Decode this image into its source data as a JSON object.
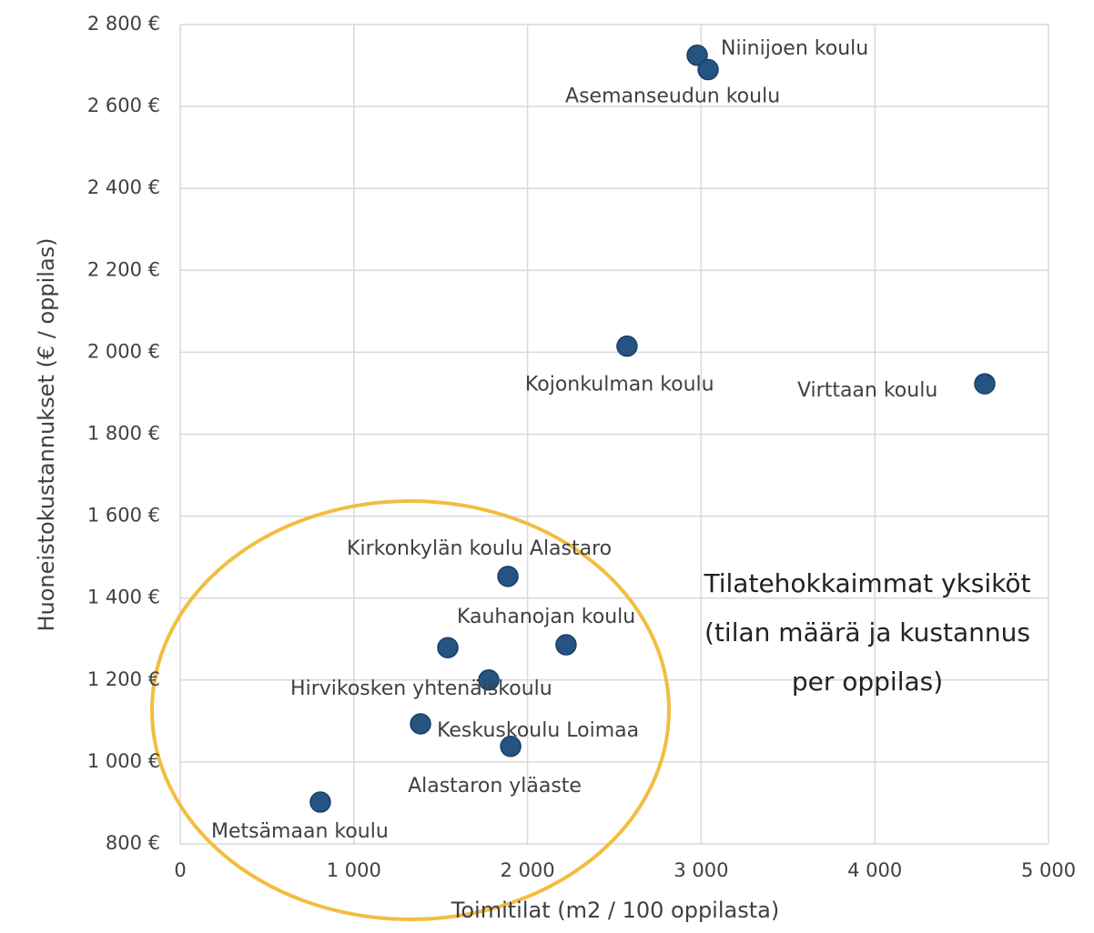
{
  "chart_data": {
    "type": "scatter",
    "x_label": "Toimitilat (m2 / 100 oppilasta)",
    "y_label": "Huoneistokustannukset (€ / oppilas)",
    "color": "#255382",
    "grid": true,
    "xlim": [
      0,
      5000
    ],
    "ylim": [
      800,
      2800
    ],
    "xticks": [
      0,
      {
        "value": 1000,
        "label": "1 000"
      },
      {
        "value": 2000,
        "label": "2 000"
      },
      {
        "value": 3000,
        "label": "3 000"
      },
      {
        "value": 4000,
        "label": "4 000"
      },
      {
        "value": 5000,
        "label": "5 000"
      }
    ],
    "yticks": [
      {
        "value": 800,
        "label": "800 €"
      },
      {
        "value": 1000,
        "label": "1 000 €"
      },
      {
        "value": 1200,
        "label": "1 200 €"
      },
      {
        "value": 1400,
        "label": "1 400 €"
      },
      {
        "value": 1600,
        "label": "1 600 €"
      },
      {
        "value": 1800,
        "label": "1 800 €"
      },
      {
        "value": 2000,
        "label": "2 000 €"
      },
      {
        "value": 2200,
        "label": "2 200 €"
      },
      {
        "value": 2400,
        "label": "2 400 €"
      },
      {
        "value": 2600,
        "label": "2 600 €"
      },
      {
        "value": 2800,
        "label": "2 800 €"
      }
    ],
    "x": [
      2977,
      3040,
      2573,
      4633,
      1887,
      2222,
      1541,
      1777,
      1384,
      1903,
      807
    ],
    "values": [
      2725,
      2690,
      2015,
      1923,
      1453,
      1286,
      1279,
      1200,
      1093,
      1038,
      902
    ],
    "labels": [
      "Niinijoen koulu",
      "Asemanseudun koulu",
      "Kojonkulman koulu",
      "Virttaan koulu",
      "Kirkonkylän koulu Alastaro",
      "Kauhanojan koulu",
      null,
      "Hirvikosken yhtenäiskoulu",
      "Keskuskoulu Loimaa",
      "Alastaron yläaste",
      "Metsämaan koulu"
    ],
    "annotation": [
      "Tilatehokkaimmat yksiköt",
      "(tilan määrä ja kustannus",
      "per oppilas)"
    ]
  }
}
